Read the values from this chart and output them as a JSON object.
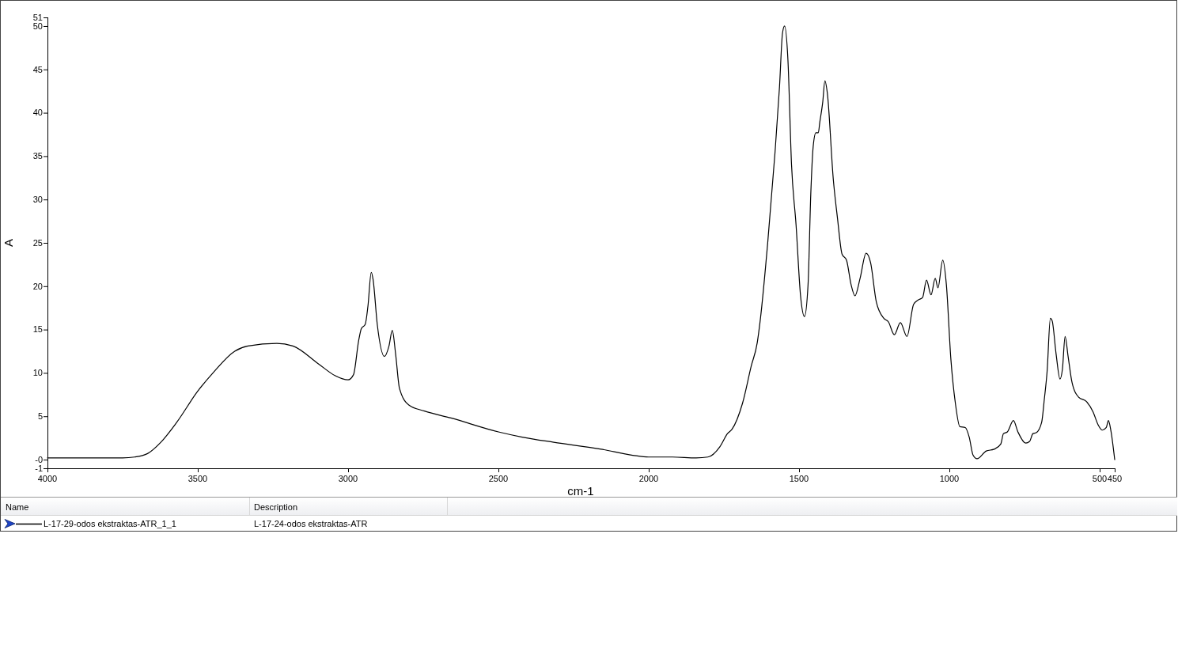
{
  "chart_data": {
    "type": "line",
    "xlabel": "cm-1",
    "ylabel": "A",
    "xlim": [
      4000,
      450
    ],
    "ylim": [
      -1,
      51
    ],
    "xticks": [
      4000,
      3500,
      3000,
      2500,
      2000,
      1500,
      1000,
      500,
      450
    ],
    "yticks": [
      51,
      50,
      45,
      40,
      35,
      30,
      25,
      20,
      15,
      10,
      5,
      {
        "value": 0,
        "label": "-0"
      },
      -1
    ],
    "x": [
      4000,
      3900,
      3800,
      3750,
      3710,
      3667,
      3623,
      3570,
      3500,
      3447,
      3377,
      3333,
      3237,
      3184,
      3097,
      3044,
      3000,
      2982,
      2965,
      2956,
      2943,
      2934,
      2923,
      2917,
      2903,
      2879,
      2864,
      2853,
      2842,
      2829,
      2798,
      2746,
      2658,
      2500,
      2421,
      2316,
      2158,
      2053,
      2000,
      1921,
      1842,
      1803,
      1763,
      1738,
      1723,
      1688,
      1659,
      1639,
      1629,
      1604,
      1580,
      1565,
      1555,
      1548,
      1537,
      1525,
      1510,
      1495,
      1482,
      1470,
      1461,
      1453,
      1444,
      1436,
      1431,
      1421,
      1414,
      1406,
      1386,
      1372,
      1357,
      1342,
      1327,
      1314,
      1297,
      1277,
      1262,
      1243,
      1218,
      1203,
      1183,
      1163,
      1141,
      1119,
      1104,
      1089,
      1076,
      1061,
      1047,
      1038,
      1022,
      1010,
      995,
      980,
      965,
      947,
      934,
      921,
      908,
      877,
      851,
      829,
      820,
      807,
      787,
      772,
      746,
      733,
      722,
      711,
      693,
      684,
      675,
      664,
      658,
      645,
      632,
      624,
      615,
      605,
      592,
      570,
      544,
      522,
      505,
      491,
      478,
      471,
      463,
      450
    ],
    "series": [
      {
        "name": "L-17-29-odos ekstraktas-ATR_1_1",
        "color": "#000000",
        "values": [
          0.2,
          0.2,
          0.2,
          0.2,
          0.3,
          0.7,
          2.0,
          4.3,
          7.9,
          10.1,
          12.5,
          13.1,
          13.4,
          13.1,
          11.0,
          9.7,
          9.2,
          9.8,
          13.7,
          15.1,
          15.6,
          17.7,
          21.6,
          20.8,
          15.6,
          11.9,
          13.1,
          14.9,
          12.2,
          8.2,
          6.3,
          5.6,
          4.8,
          3.2,
          2.6,
          2.0,
          1.2,
          0.5,
          0.3,
          0.3,
          0.2,
          0.3,
          1.5,
          3.0,
          3.5,
          6.5,
          10.8,
          13.5,
          16.1,
          25.1,
          35.4,
          43.0,
          49.2,
          50.0,
          46.1,
          34.0,
          27.1,
          18.9,
          16.5,
          20.2,
          30.6,
          36.1,
          37.7,
          37.7,
          38.9,
          41.3,
          43.7,
          42.3,
          32.3,
          27.8,
          23.7,
          23.0,
          20.2,
          18.9,
          20.9,
          23.8,
          22.7,
          18.2,
          16.3,
          15.9,
          14.4,
          15.8,
          14.2,
          17.9,
          18.4,
          18.7,
          20.7,
          19.0,
          20.9,
          19.8,
          23.0,
          20.2,
          11.6,
          6.5,
          3.8,
          3.7,
          2.6,
          0.5,
          0.1,
          1.0,
          1.2,
          1.8,
          3.0,
          3.2,
          4.5,
          3.2,
          1.9,
          2.1,
          3.0,
          3.1,
          4.3,
          7.0,
          10.1,
          16.3,
          16.0,
          12.2,
          9.3,
          10.4,
          14.2,
          11.9,
          8.9,
          7.2,
          6.7,
          5.5,
          4.0,
          3.4,
          3.7,
          4.5,
          3.4,
          0.0
        ]
      }
    ],
    "legend": "bottom",
    "annotations": [
      "Name",
      "Description",
      "L-17-24-odos ekstraktas-ATR"
    ]
  }
}
